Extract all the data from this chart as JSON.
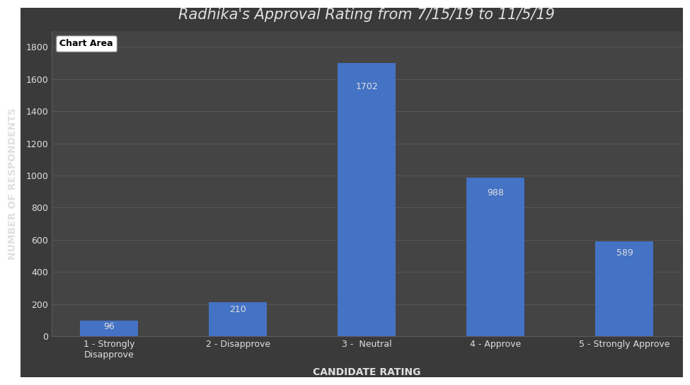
{
  "title": "Radhika's Approval Rating from 7/15/19 to 11/5/19",
  "xlabel": "CANDIDATE RATING",
  "ylabel": "NUMBER OF RESPONDENTS",
  "categories": [
    "1 - Strongly\nDisapprove",
    "2 - Disapprove",
    "3 -  Neutral",
    "4 - Approve",
    "5 - Strongly Approve"
  ],
  "values": [
    96,
    210,
    1702,
    988,
    589
  ],
  "bar_color": "#4472C4",
  "figure_bg_color": "#ffffff",
  "chart_bg_color": "#3a3a3a",
  "plot_bg_color": "#444444",
  "text_color": "#e0e0e0",
  "grid_color": "#5a5a5a",
  "ylim": [
    0,
    1900
  ],
  "yticks": [
    0,
    200,
    400,
    600,
    800,
    1000,
    1200,
    1400,
    1600,
    1800
  ],
  "legend_label": "Chart Area",
  "legend_bg": "#ffffff",
  "legend_text_color": "#000000",
  "title_fontsize": 15,
  "axis_label_fontsize": 10,
  "tick_fontsize": 9,
  "bar_label_fontsize": 9,
  "bar_width": 0.45
}
